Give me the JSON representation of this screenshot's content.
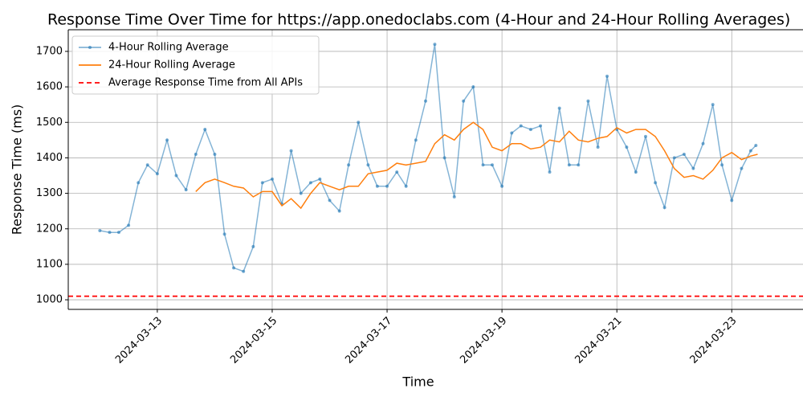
{
  "chart_data": {
    "type": "line",
    "title": "Response Time Over Time for https://app.onedoclabs.com (4-Hour and 24-Hour Rolling Averages)",
    "xlabel": "Time",
    "ylabel": "Response Time (ms)",
    "xlim": [
      11.45,
      24.24
    ],
    "ylim": [
      973,
      1761
    ],
    "xticks": [
      {
        "value": 13,
        "label": "2024-03-13"
      },
      {
        "value": 15,
        "label": "2024-03-15"
      },
      {
        "value": 17,
        "label": "2024-03-17"
      },
      {
        "value": 19,
        "label": "2024-03-19"
      },
      {
        "value": 21,
        "label": "2024-03-21"
      },
      {
        "value": 23,
        "label": "2024-03-23"
      }
    ],
    "yticks": [
      1000,
      1100,
      1200,
      1300,
      1400,
      1500,
      1600,
      1700
    ],
    "grid": true,
    "legend": "upper left",
    "series": [
      {
        "name": "4-Hour Rolling Average",
        "color": "#1f77b4",
        "marker": true,
        "x": [
          12.0,
          12.17,
          12.33,
          12.5,
          12.67,
          12.83,
          13.0,
          13.17,
          13.33,
          13.5,
          13.67,
          13.83,
          14.0,
          14.17,
          14.33,
          14.5,
          14.67,
          14.83,
          15.0,
          15.17,
          15.33,
          15.5,
          15.67,
          15.83,
          16.0,
          16.17,
          16.33,
          16.5,
          16.67,
          16.83,
          17.0,
          17.17,
          17.33,
          17.5,
          17.67,
          17.83,
          18.0,
          18.17,
          18.33,
          18.5,
          18.67,
          18.83,
          19.0,
          19.17,
          19.33,
          19.5,
          19.67,
          19.83,
          20.0,
          20.17,
          20.33,
          20.5,
          20.67,
          20.83,
          21.0,
          21.17,
          21.33,
          21.5,
          21.67,
          21.83,
          22.0,
          22.17,
          22.33,
          22.5,
          22.67,
          22.83,
          23.0,
          23.17,
          23.33,
          23.42
        ],
        "values": [
          1195,
          1190,
          1190,
          1210,
          1330,
          1380,
          1355,
          1450,
          1350,
          1310,
          1410,
          1480,
          1410,
          1185,
          1090,
          1080,
          1150,
          1330,
          1340,
          1270,
          1420,
          1300,
          1330,
          1340,
          1280,
          1250,
          1380,
          1500,
          1380,
          1320,
          1320,
          1360,
          1320,
          1450,
          1560,
          1720,
          1400,
          1290,
          1560,
          1600,
          1380,
          1380,
          1320,
          1470,
          1490,
          1480,
          1490,
          1360,
          1540,
          1380,
          1380,
          1560,
          1430,
          1630,
          1480,
          1430,
          1360,
          1460,
          1330,
          1260,
          1400,
          1410,
          1370,
          1440,
          1550,
          1380,
          1280,
          1370,
          1420,
          1435
        ]
      },
      {
        "name": "24-Hour Rolling Average",
        "color": "#ff7f0e",
        "marker": false,
        "x": [
          13.67,
          13.83,
          14.0,
          14.17,
          14.33,
          14.5,
          14.67,
          14.83,
          15.0,
          15.17,
          15.33,
          15.5,
          15.67,
          15.83,
          16.0,
          16.17,
          16.33,
          16.5,
          16.67,
          16.83,
          17.0,
          17.17,
          17.33,
          17.5,
          17.67,
          17.83,
          18.0,
          18.17,
          18.33,
          18.5,
          18.67,
          18.83,
          19.0,
          19.17,
          19.33,
          19.5,
          19.67,
          19.83,
          20.0,
          20.17,
          20.33,
          20.5,
          20.67,
          20.83,
          21.0,
          21.17,
          21.33,
          21.5,
          21.67,
          21.83,
          22.0,
          22.17,
          22.33,
          22.5,
          22.67,
          22.83,
          23.0,
          23.17,
          23.33,
          23.45
        ],
        "values": [
          1305,
          1330,
          1340,
          1330,
          1320,
          1315,
          1290,
          1305,
          1305,
          1265,
          1285,
          1258,
          1300,
          1330,
          1320,
          1310,
          1320,
          1320,
          1355,
          1360,
          1365,
          1385,
          1380,
          1385,
          1390,
          1440,
          1465,
          1450,
          1480,
          1500,
          1480,
          1430,
          1420,
          1440,
          1440,
          1425,
          1430,
          1450,
          1445,
          1475,
          1450,
          1445,
          1455,
          1460,
          1485,
          1470,
          1480,
          1480,
          1460,
          1420,
          1370,
          1345,
          1350,
          1340,
          1365,
          1400,
          1415,
          1395,
          1405,
          1410
        ]
      }
    ],
    "hlines": [
      {
        "name": "Average Response Time from All APIs",
        "value": 1010,
        "color": "#ff0000",
        "dashed": true
      }
    ]
  }
}
